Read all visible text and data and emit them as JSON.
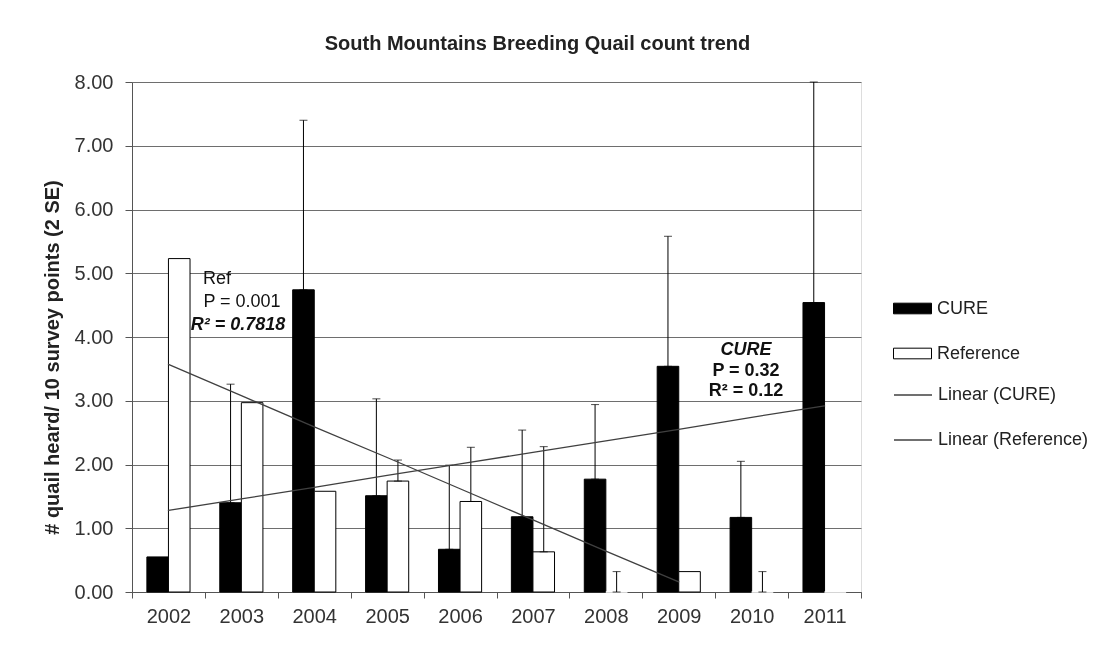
{
  "chart_data": {
    "type": "bar",
    "title": "South Mountains Breeding Quail count trend",
    "ylabel": "# quail heard/ 10 survey points (2 SE)",
    "categories": [
      "2002",
      "2003",
      "2004",
      "2005",
      "2006",
      "2007",
      "2008",
      "2009",
      "2010",
      "2011"
    ],
    "series": [
      {
        "name": "CURE",
        "color": "#000000",
        "values": [
          0.55,
          1.4,
          4.74,
          1.51,
          0.67,
          1.18,
          1.77,
          3.54,
          1.17,
          4.54
        ],
        "errors": [
          null,
          [
            1.4,
            3.26
          ],
          [
            4.74,
            7.4
          ],
          [
            1.51,
            3.03
          ],
          [
            0.67,
            1.99
          ],
          [
            1.18,
            2.54
          ],
          [
            1.77,
            2.94
          ],
          [
            3.54,
            5.58
          ],
          [
            1.17,
            2.05
          ],
          [
            4.54,
            8.0
          ]
        ]
      },
      {
        "name": "Reference",
        "color": "#ffffff",
        "values": [
          5.23,
          2.97,
          1.58,
          1.74,
          1.42,
          0.63,
          0,
          0.32,
          0,
          0
        ],
        "errors": [
          null,
          null,
          null,
          [
            1.74,
            2.07
          ],
          [
            1.42,
            2.27
          ],
          [
            0.63,
            2.28
          ],
          [
            0,
            0.32
          ],
          null,
          [
            0,
            0.32
          ],
          null
        ]
      },
      {
        "name": "Linear (CURE)",
        "type": "line",
        "color": "#404040",
        "values": [
          1.28,
          1.46,
          1.64,
          1.83,
          2.01,
          2.19,
          2.37,
          2.55,
          2.74,
          2.92
        ]
      },
      {
        "name": "Linear (Reference)",
        "type": "line",
        "color": "#404040",
        "values": [
          3.57,
          3.08,
          2.59,
          2.11,
          1.62,
          1.13,
          0.64,
          0.16,
          null,
          null
        ]
      }
    ],
    "ylim": [
      0,
      8
    ],
    "yticks": [
      {
        "value": 0,
        "label": "0.00"
      },
      {
        "value": 1,
        "label": "1.00"
      },
      {
        "value": 2,
        "label": "2.00"
      },
      {
        "value": 3,
        "label": "3.00"
      },
      {
        "value": 4,
        "label": "4.00"
      },
      {
        "value": 5,
        "label": "5.00"
      },
      {
        "value": 6,
        "label": "6.00"
      },
      {
        "value": 7,
        "label": "7.00"
      },
      {
        "value": 8,
        "label": "8.00"
      }
    ],
    "grid": "y",
    "legend": "right",
    "annotations": [
      "Ref",
      "P = 0.001",
      "R² = 0.7818",
      "CURE",
      "P = 0.32",
      "R² = 0.12"
    ]
  }
}
